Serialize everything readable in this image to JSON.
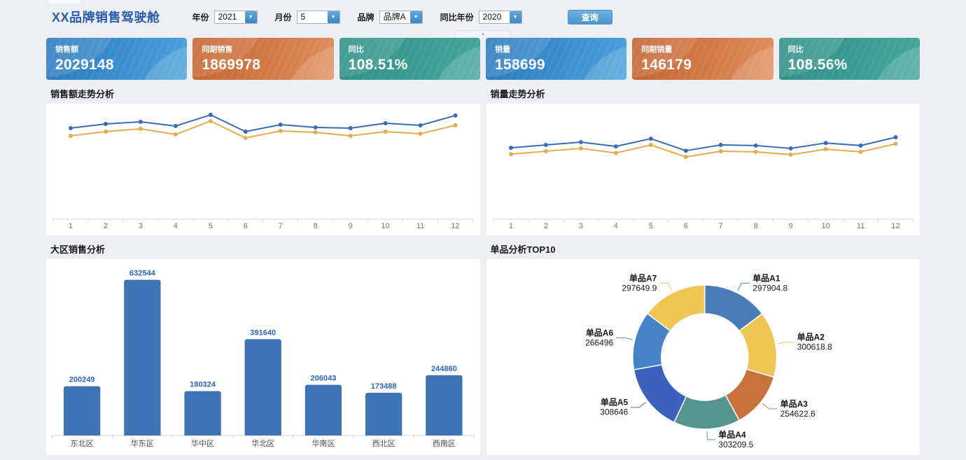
{
  "header": {
    "title": "XX品牌销售驾驶舱",
    "filters": [
      {
        "label": "年份",
        "value": "2021"
      },
      {
        "label": "月份",
        "value": "5"
      },
      {
        "label": "品牌",
        "value": "品牌A"
      },
      {
        "label": "同比年份",
        "value": "2020"
      }
    ],
    "query_button_label": "查询"
  },
  "icons": {
    "dropdown_arrow": "▼",
    "collapse_arrow": "▲"
  },
  "kpi_cards": [
    {
      "label": "销售额",
      "value": "2029148",
      "theme": "blue"
    },
    {
      "label": "同期销售",
      "value": "1869978",
      "theme": "orange"
    },
    {
      "label": "同比",
      "value": "108.51%",
      "theme": "teal"
    },
    {
      "label": "销量",
      "value": "158699",
      "theme": "blue"
    },
    {
      "label": "同期销量",
      "value": "146179",
      "theme": "orange"
    },
    {
      "label": "同比",
      "value": "108.56%",
      "theme": "teal"
    }
  ],
  "colors": {
    "accent_blue": "#2b5cab",
    "card_blue": "#2f7fc1",
    "card_orange": "#cd6f39",
    "card_teal": "#35968d",
    "line_current": "#3a6bb5",
    "line_prior": "#e2ad4c",
    "bar_fill": "#3e74b4"
  },
  "chart_data": [
    {
      "id": "sales_amount_trend",
      "type": "line",
      "title": "销售额走势分析",
      "x": [
        "1",
        "2",
        "3",
        "4",
        "5",
        "6",
        "7",
        "8",
        "9",
        "10",
        "11",
        "12"
      ],
      "series": [
        {
          "name": "current_period",
          "color": "#3a6bb5",
          "values": [
            159500,
            166900,
            170600,
            163200,
            182800,
            153400,
            165600,
            160700,
            159500,
            168100,
            164400,
            181600
          ]
        },
        {
          "name": "same_period_last_year",
          "color": "#e2ad4c",
          "values": [
            146000,
            153400,
            158300,
            148500,
            171800,
            142300,
            154600,
            152100,
            146000,
            153400,
            149700,
            164400
          ]
        }
      ],
      "ylim": [
        0,
        200000
      ],
      "grid": false,
      "legend": "none",
      "note": "y values estimated from pixel positions; no y-axis labels shown"
    },
    {
      "id": "sales_volume_trend",
      "type": "line",
      "title": "销量走势分析",
      "x": [
        "1",
        "2",
        "3",
        "4",
        "5",
        "6",
        "7",
        "8",
        "9",
        "10",
        "11",
        "12"
      ],
      "series": [
        {
          "name": "current_period",
          "color": "#3a6bb5",
          "values": [
            12500,
            13000,
            13500,
            12750,
            14100,
            12000,
            13000,
            12900,
            12400,
            13350,
            12900,
            14350
          ]
        },
        {
          "name": "same_period_last_year",
          "color": "#e2ad4c",
          "values": [
            11400,
            11900,
            12400,
            11600,
            13000,
            10900,
            11900,
            11800,
            11300,
            12250,
            11800,
            13200
          ]
        }
      ],
      "ylim": [
        0,
        20000
      ],
      "grid": false,
      "legend": "none",
      "note": "y values estimated from pixel positions; no y-axis labels shown"
    },
    {
      "id": "region_sales",
      "type": "bar",
      "title": "大区销售分析",
      "categories": [
        "东北区",
        "华东区",
        "华中区",
        "华北区",
        "华南区",
        "西北区",
        "西南区"
      ],
      "values": [
        200249,
        632544,
        180324,
        391640,
        206043,
        173488,
        244860
      ],
      "bar_color": "#3e74b4",
      "value_label_color": "#2d66bd",
      "ylim": [
        0,
        640000
      ],
      "grid": false
    },
    {
      "id": "top_products",
      "type": "pie",
      "title": "单品分析TOP10",
      "donut": true,
      "start_angle": "top",
      "direction": "clockwise",
      "labels": [
        "单品A1",
        "单品A2",
        "单品A3",
        "单品A4",
        "单品A5",
        "单品A6",
        "单品A7"
      ],
      "values": [
        297904.8,
        300618.8,
        254622.6,
        303209.5,
        308646,
        266496,
        297649.9
      ],
      "colors": [
        "#4a7cb8",
        "#eec655",
        "#c7713d",
        "#55958d",
        "#3c62bd",
        "#4583c6",
        "#eec655"
      ]
    }
  ]
}
